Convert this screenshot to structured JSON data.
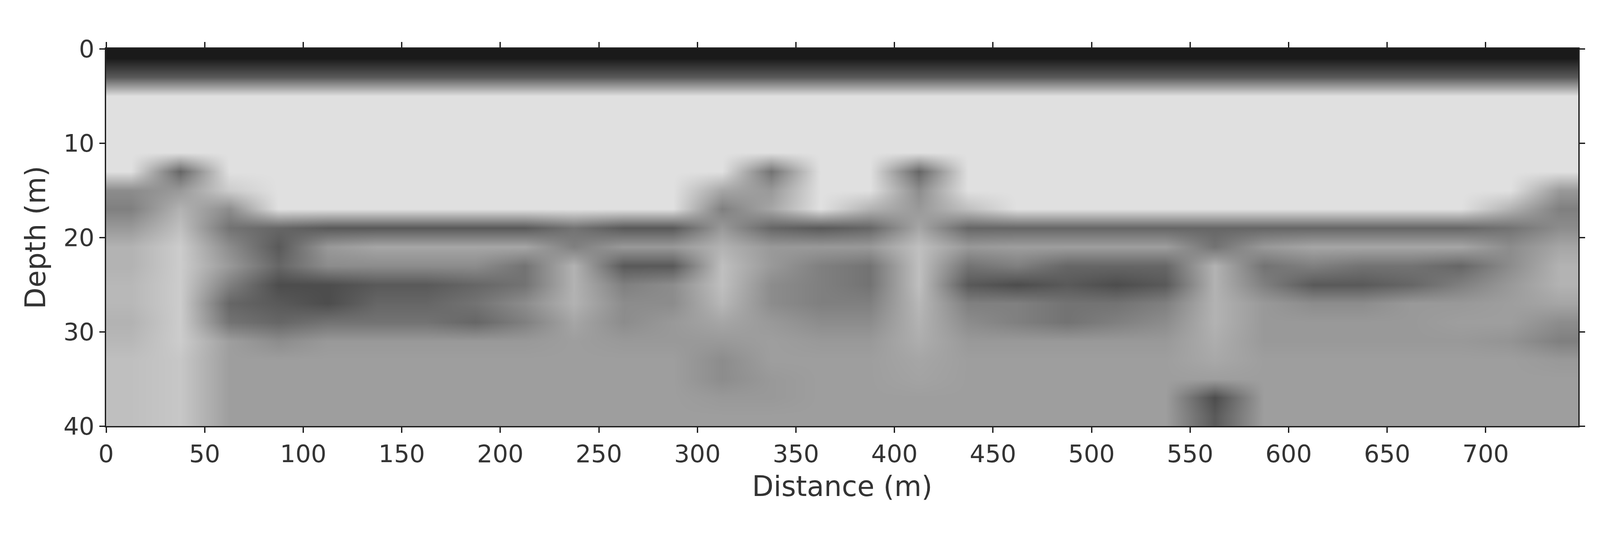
{
  "chart_data": {
    "type": "heatmap",
    "x_label": "Distance (m)",
    "y_label": "Depth (m)",
    "xlim": [
      0,
      747
    ],
    "ylim": [
      40,
      0
    ],
    "xticks": [
      0,
      50,
      100,
      150,
      200,
      250,
      300,
      350,
      400,
      450,
      500,
      550,
      600,
      650,
      700
    ],
    "yticks": [
      0,
      10,
      20,
      30,
      40
    ],
    "grid": true,
    "zlim": [
      0,
      100
    ],
    "x": [
      12.5,
      37.5,
      62.5,
      87.5,
      112.5,
      137.5,
      162.5,
      187.5,
      212.5,
      237.5,
      262.5,
      287.5,
      312.5,
      337.5,
      362.5,
      387.5,
      412.5,
      437.5,
      462.5,
      487.5,
      512.5,
      537.5,
      562.5,
      587.5,
      612.5,
      637.5,
      662.5,
      687.5,
      712.5,
      737.5
    ],
    "y": [
      1,
      3,
      5,
      7,
      9,
      11,
      13,
      15,
      17,
      19,
      21,
      23,
      25,
      27,
      29,
      31,
      33,
      35,
      37,
      39
    ],
    "z": [
      [
        10,
        10,
        10,
        10,
        10,
        10,
        10,
        10,
        10,
        10,
        10,
        10,
        10,
        10,
        10,
        10,
        10,
        10,
        10,
        10,
        10,
        10,
        10,
        10,
        10,
        10,
        10,
        10,
        10,
        10
      ],
      [
        35,
        35,
        35,
        35,
        35,
        35,
        35,
        35,
        35,
        35,
        35,
        35,
        35,
        35,
        35,
        35,
        35,
        35,
        35,
        35,
        35,
        35,
        35,
        35,
        35,
        35,
        35,
        35,
        35,
        35
      ],
      [
        88,
        88,
        88,
        88,
        88,
        88,
        88,
        88,
        88,
        88,
        88,
        88,
        88,
        88,
        88,
        88,
        88,
        88,
        88,
        88,
        88,
        88,
        88,
        88,
        88,
        88,
        88,
        88,
        88,
        88
      ],
      [
        88,
        88,
        88,
        88,
        88,
        88,
        88,
        88,
        88,
        88,
        88,
        88,
        88,
        88,
        88,
        88,
        88,
        88,
        88,
        88,
        88,
        88,
        88,
        88,
        88,
        88,
        88,
        88,
        88,
        88
      ],
      [
        88,
        88,
        88,
        88,
        88,
        88,
        88,
        88,
        88,
        88,
        88,
        88,
        88,
        88,
        88,
        88,
        88,
        88,
        88,
        88,
        88,
        88,
        88,
        88,
        88,
        88,
        88,
        88,
        88,
        88
      ],
      [
        88,
        88,
        88,
        88,
        88,
        88,
        88,
        88,
        88,
        88,
        88,
        88,
        88,
        88,
        88,
        88,
        88,
        88,
        88,
        88,
        88,
        88,
        88,
        88,
        88,
        88,
        88,
        88,
        88,
        88
      ],
      [
        88,
        40,
        88,
        88,
        88,
        88,
        88,
        88,
        88,
        88,
        88,
        88,
        88,
        45,
        88,
        88,
        40,
        88,
        88,
        88,
        88,
        88,
        88,
        88,
        88,
        88,
        88,
        88,
        88,
        88
      ],
      [
        55,
        60,
        80,
        88,
        88,
        88,
        88,
        88,
        88,
        88,
        88,
        88,
        65,
        60,
        88,
        88,
        55,
        88,
        88,
        88,
        88,
        88,
        88,
        88,
        88,
        88,
        88,
        88,
        88,
        60
      ],
      [
        50,
        70,
        55,
        88,
        88,
        88,
        88,
        88,
        88,
        88,
        88,
        88,
        50,
        65,
        88,
        70,
        60,
        75,
        88,
        88,
        88,
        88,
        88,
        88,
        88,
        88,
        88,
        88,
        70,
        50
      ],
      [
        60,
        75,
        45,
        40,
        35,
        35,
        35,
        35,
        35,
        45,
        35,
        35,
        60,
        40,
        35,
        40,
        65,
        40,
        40,
        40,
        40,
        40,
        40,
        40,
        40,
        40,
        40,
        40,
        45,
        55
      ],
      [
        70,
        80,
        55,
        35,
        60,
        65,
        65,
        65,
        65,
        50,
        60,
        60,
        70,
        60,
        60,
        60,
        75,
        60,
        62,
        62,
        62,
        62,
        45,
        60,
        65,
        65,
        65,
        65,
        55,
        65
      ],
      [
        70,
        80,
        60,
        40,
        55,
        55,
        55,
        55,
        45,
        70,
        35,
        35,
        75,
        60,
        50,
        45,
        75,
        45,
        50,
        40,
        40,
        40,
        70,
        45,
        50,
        45,
        45,
        40,
        55,
        70
      ],
      [
        72,
        80,
        50,
        30,
        30,
        35,
        35,
        40,
        45,
        70,
        50,
        55,
        75,
        55,
        50,
        45,
        75,
        35,
        30,
        35,
        30,
        35,
        70,
        50,
        35,
        35,
        40,
        50,
        60,
        70
      ],
      [
        72,
        80,
        40,
        35,
        30,
        40,
        40,
        45,
        55,
        70,
        55,
        55,
        72,
        55,
        50,
        50,
        72,
        50,
        50,
        45,
        45,
        50,
        70,
        60,
        55,
        55,
        60,
        60,
        62,
        65
      ],
      [
        70,
        80,
        45,
        40,
        45,
        45,
        45,
        40,
        50,
        65,
        55,
        60,
        65,
        60,
        55,
        55,
        70,
        55,
        50,
        45,
        50,
        55,
        70,
        60,
        60,
        60,
        60,
        62,
        62,
        55
      ],
      [
        72,
        80,
        62,
        55,
        60,
        60,
        60,
        60,
        60,
        62,
        60,
        60,
        60,
        62,
        60,
        60,
        68,
        60,
        60,
        60,
        60,
        60,
        68,
        60,
        60,
        60,
        60,
        60,
        58,
        50
      ],
      [
        75,
        78,
        62,
        62,
        62,
        62,
        62,
        62,
        62,
        62,
        62,
        62,
        55,
        62,
        62,
        62,
        65,
        62,
        62,
        62,
        62,
        62,
        66,
        62,
        62,
        62,
        62,
        62,
        62,
        60
      ],
      [
        75,
        78,
        62,
        62,
        62,
        62,
        62,
        62,
        62,
        62,
        62,
        62,
        55,
        60,
        62,
        62,
        64,
        62,
        62,
        62,
        62,
        62,
        62,
        62,
        62,
        62,
        62,
        62,
        62,
        62
      ],
      [
        75,
        78,
        62,
        62,
        62,
        62,
        62,
        62,
        62,
        62,
        62,
        62,
        60,
        60,
        62,
        62,
        62,
        62,
        62,
        62,
        62,
        62,
        30,
        62,
        62,
        62,
        62,
        62,
        62,
        62
      ],
      [
        75,
        78,
        62,
        62,
        62,
        62,
        62,
        62,
        62,
        62,
        62,
        62,
        62,
        62,
        62,
        62,
        62,
        62,
        62,
        62,
        62,
        62,
        35,
        62,
        62,
        62,
        62,
        62,
        62,
        62
      ]
    ]
  }
}
